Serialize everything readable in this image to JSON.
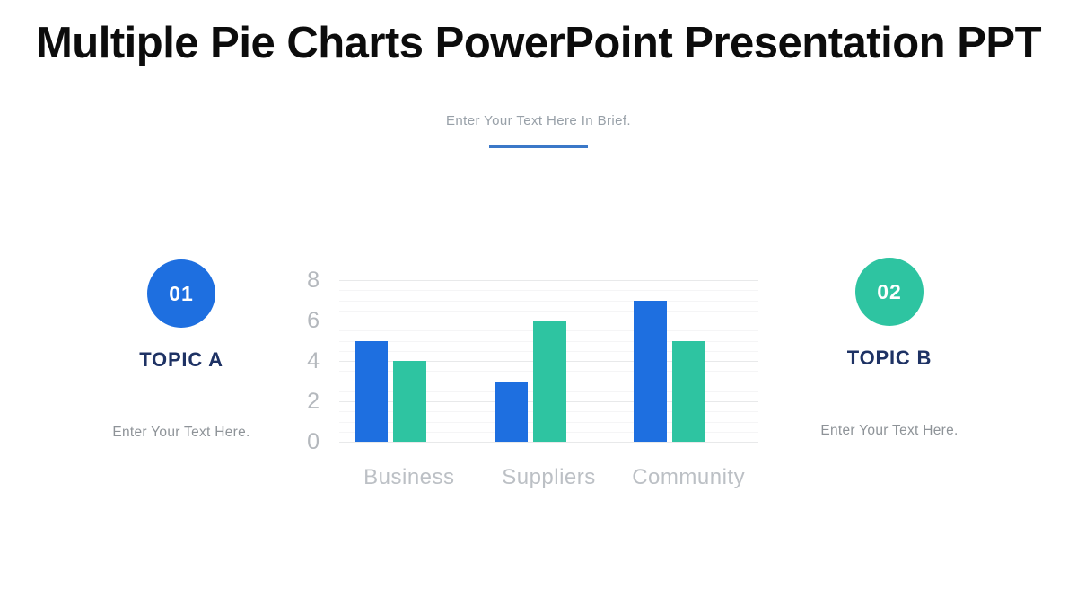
{
  "slide": {
    "title": "Multiple Pie Charts PowerPoint Presentation PPT",
    "subtitle": "Enter Your Text Here In Brief."
  },
  "topics": [
    {
      "number": "01",
      "label": "TOPIC A",
      "description": "Enter Your Text Here.",
      "circle_color": "#1e6fe0"
    },
    {
      "number": "02",
      "label": "TOPIC B",
      "description": "Enter Your Text Here.",
      "circle_color": "#2ec4a1"
    }
  ],
  "chart_data": {
    "type": "bar",
    "categories": [
      "Business",
      "Suppliers",
      "Community"
    ],
    "series": [
      {
        "name": "series-blue",
        "color": "#1e6fe0",
        "values": [
          5,
          3,
          7
        ]
      },
      {
        "name": "series-teal",
        "color": "#2ec4a1",
        "values": [
          4,
          6,
          5
        ]
      }
    ],
    "title": "",
    "xlabel": "",
    "ylabel": "",
    "ylim": [
      0,
      8
    ],
    "yticks": [
      0,
      2,
      4,
      6,
      8
    ],
    "minor_grid_step": 0.5,
    "grid": "horizontal",
    "legend_position": "none"
  },
  "colors": {
    "accent_blue": "#1e6fe0",
    "accent_teal": "#2ec4a1",
    "navy_text": "#1e3264",
    "divider_blue": "#3b78c8",
    "muted_text": "#8e9398",
    "axis_text": "#b4b8bd",
    "grid_major": "#e8e9ea",
    "grid_minor": "#f5f5f6"
  }
}
